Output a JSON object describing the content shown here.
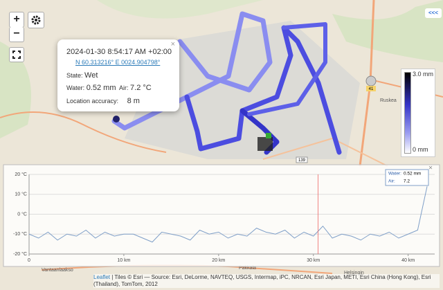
{
  "map": {
    "zoom_in": "+",
    "zoom_out": "−",
    "collapse": "<<<",
    "labels": [
      "Ruskea",
      "Vantaanlaakso",
      "Pakkala",
      "Helsingin"
    ],
    "road_shields": [
      "41",
      "139"
    ]
  },
  "popup": {
    "close": "×",
    "time": "2024-01-30 8:54:17 AM +02:00",
    "coords": "N 60.313216° E 0024.904798°",
    "state_label": "State:",
    "state": "Wet",
    "water_label": "Water:",
    "water": "0.52 mm",
    "air_label": "Air:",
    "air": "7.2 °C",
    "accuracy_label": "Location accuracy:",
    "accuracy": "8 m"
  },
  "legend": {
    "max": "3.0 mm",
    "min": "0 mm"
  },
  "chart_data": {
    "type": "line",
    "close": "×",
    "color": "#7f9fc8",
    "x": [
      0,
      1,
      2,
      3,
      4,
      5,
      6,
      7,
      8,
      9,
      10,
      11,
      12,
      13,
      14,
      15,
      16,
      17,
      18,
      19,
      20,
      21,
      22,
      23,
      24,
      25,
      26,
      27,
      28,
      29,
      30,
      31,
      32,
      33,
      34,
      35,
      36,
      37,
      38,
      39,
      40,
      41,
      42
    ],
    "values": [
      -10,
      -12,
      -9,
      -13,
      -10,
      -11,
      -8,
      -12,
      -9,
      -11,
      -10,
      -10,
      -12,
      -14,
      -9,
      -10,
      -11,
      -13,
      -8,
      -10,
      -9,
      -12,
      -10,
      -11,
      -7,
      -9,
      -10,
      -8,
      -12,
      -9,
      -11,
      -6,
      -12,
      -10,
      -11,
      -13,
      -10,
      -11,
      -9,
      -12,
      -10,
      -8,
      14
    ],
    "cursor_x": 30.5,
    "tooltip": {
      "water_label": "Water:",
      "water": "0.52 mm",
      "air_label": "Air:",
      "air": "7.2"
    },
    "xlim": [
      0,
      42.8
    ],
    "ylim": [
      -20,
      20
    ],
    "xticks": [
      0,
      {
        "value": 10,
        "label": "10 km"
      },
      {
        "value": 20,
        "label": "20 km"
      },
      {
        "value": 30,
        "label": "30 km"
      },
      {
        "value": 40,
        "label": "40 km"
      }
    ],
    "yticks": [
      {
        "value": -20,
        "label": "-20 °C"
      },
      {
        "value": -10,
        "label": "-10 °C"
      },
      {
        "value": 0,
        "label": "0 °C"
      },
      {
        "value": 10,
        "label": "10 °C"
      },
      {
        "value": 20,
        "label": "20 °C"
      }
    ],
    "grid": true
  },
  "attribution": {
    "leaflet": "Leaflet",
    "text": "| Tiles © Esri — Source: Esri, DeLorme, NAVTEQ, USGS, Intermap, iPC, NRCAN, Esri Japan, METI, Esri China (Hong Kong), Esri (Thailand), TomTom, 2012"
  }
}
